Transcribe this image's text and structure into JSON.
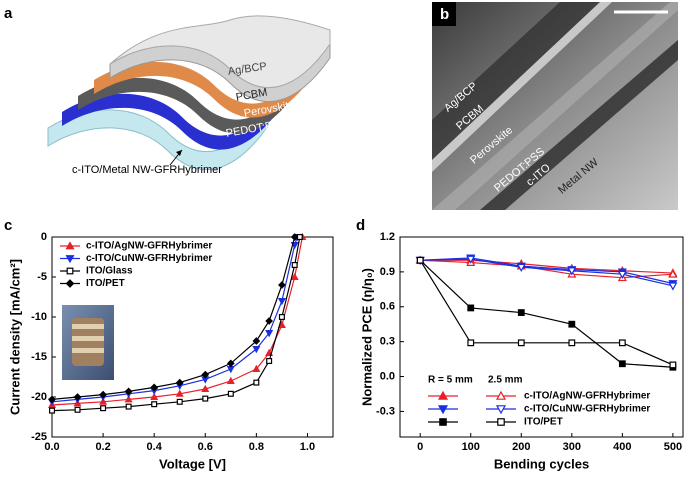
{
  "panels": {
    "a": {
      "label": "a",
      "layers": [
        "Ag/BCP",
        "PCBM",
        "Perovskite",
        "PEDOT:PSS"
      ],
      "substrate": "c-ITO/Metal NW-GFRHybrimer"
    },
    "b": {
      "label": "b",
      "layers": [
        "Ag/BCP",
        "PCBM",
        "Perovskite",
        "PEDOT:PSS",
        "c-ITO",
        "Metal NW"
      ]
    },
    "c": {
      "label": "c"
    },
    "d": {
      "label": "d"
    }
  },
  "chart_data": [
    {
      "type": "line",
      "xlabel": "Voltage [V]",
      "ylabel": "Current density [mA/cm²]",
      "xlim": [
        0,
        1.1
      ],
      "ylim": [
        -25,
        0
      ],
      "xticks": [
        {
          "value": 0,
          "label": "0.0"
        },
        0.2,
        0.4,
        0.6,
        0.8,
        {
          "value": 1,
          "label": "1.0"
        }
      ],
      "yticks": [
        0,
        -5,
        -10,
        -15,
        -20,
        -25
      ],
      "series": [
        {
          "name": "c-ITO/AgNW-GFRHybrimer",
          "color": "#e8202a",
          "marker": "triangle-up",
          "filled": true,
          "x": [
            0,
            0.1,
            0.2,
            0.3,
            0.4,
            0.5,
            0.6,
            0.7,
            0.8,
            0.85,
            0.9,
            0.95,
            0.98
          ],
          "values": [
            -21.0,
            -20.8,
            -20.6,
            -20.3,
            -20.0,
            -19.6,
            -19.0,
            -18.0,
            -16.5,
            -14.5,
            -11.0,
            -5.0,
            0
          ]
        },
        {
          "name": "c-ITO/CuNW-GFRHybrimer",
          "color": "#1a2fe0",
          "marker": "triangle-down",
          "filled": true,
          "x": [
            0,
            0.1,
            0.2,
            0.3,
            0.4,
            0.5,
            0.6,
            0.7,
            0.8,
            0.85,
            0.9,
            0.95,
            0.96
          ],
          "values": [
            -20.6,
            -20.3,
            -20.0,
            -19.6,
            -19.2,
            -18.6,
            -17.8,
            -16.5,
            -14.0,
            -12.0,
            -8.0,
            -1.0,
            0
          ]
        },
        {
          "name": "ITO/Glass",
          "color": "#000000",
          "marker": "square",
          "filled": false,
          "x": [
            0,
            0.1,
            0.2,
            0.3,
            0.4,
            0.5,
            0.6,
            0.7,
            0.8,
            0.85,
            0.9,
            0.95,
            0.97
          ],
          "values": [
            -21.7,
            -21.6,
            -21.4,
            -21.2,
            -20.9,
            -20.6,
            -20.2,
            -19.6,
            -18.2,
            -15.5,
            -10.0,
            -3.5,
            0
          ]
        },
        {
          "name": "ITO/PET",
          "color": "#000000",
          "marker": "diamond",
          "filled": true,
          "x": [
            0,
            0.1,
            0.2,
            0.3,
            0.4,
            0.5,
            0.6,
            0.7,
            0.8,
            0.85,
            0.9,
            0.95
          ],
          "values": [
            -20.3,
            -20.0,
            -19.7,
            -19.3,
            -18.8,
            -18.2,
            -17.2,
            -15.8,
            -13.0,
            -10.5,
            -6.0,
            0
          ]
        }
      ]
    },
    {
      "type": "line",
      "xlabel": "Bending cycles",
      "ylabel": "Normalized PCE (η/η₀)",
      "xlim": [
        -40,
        520
      ],
      "ylim": [
        -0.52,
        1.2
      ],
      "xticks": [
        0,
        100,
        200,
        300,
        400,
        500
      ],
      "yticks": [
        -0.3,
        {
          "value": 0,
          "label": "0.0"
        },
        0.3,
        0.6,
        0.9,
        1.2
      ],
      "x": [
        0,
        100,
        200,
        300,
        400,
        500
      ],
      "legend_header": [
        "R = 5 mm",
        "2.5 mm"
      ],
      "marker_fill": [
        true,
        false
      ],
      "series": [
        {
          "name": "c-ITO/AgNW-GFRHybrimer",
          "color": "#e8202a",
          "marker": "triangle-up",
          "values": [
            [
              1.0,
              1.0,
              0.97,
              0.93,
              0.91,
              0.89
            ],
            [
              1.0,
              0.98,
              0.95,
              0.88,
              0.85,
              0.88
            ]
          ]
        },
        {
          "name": "c-ITO/CuNW-GFRHybrimer",
          "color": "#1a2fe0",
          "marker": "triangle-down",
          "values": [
            [
              1.0,
              1.02,
              0.95,
              0.92,
              0.9,
              0.8
            ],
            [
              1.0,
              1.01,
              0.94,
              0.91,
              0.88,
              0.78
            ]
          ]
        },
        {
          "name": "ITO/PET",
          "color": "#000000",
          "marker": "square",
          "values": [
            [
              1.0,
              0.59,
              0.55,
              0.45,
              0.11,
              0.08
            ],
            [
              1.0,
              0.29,
              0.29,
              0.29,
              0.29,
              0.1
            ]
          ]
        }
      ]
    }
  ]
}
